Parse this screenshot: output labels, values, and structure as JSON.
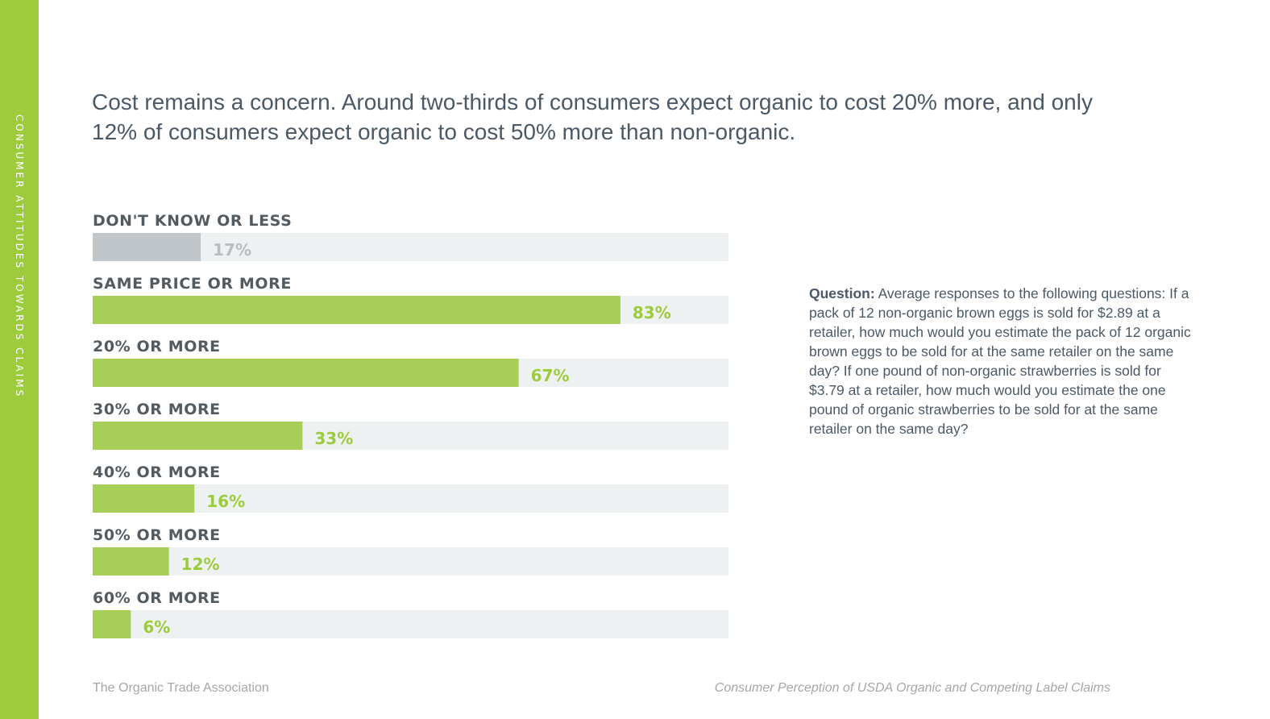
{
  "side_label": "CONSUMER ATTITUDES TOWARDS CLAIMS",
  "headline": "Cost remains a concern. Around two-thirds of consumers expect organic to cost 20% more, and only 12% of consumers expect organic to cost 50% more than non-organic.",
  "note": {
    "label": "Question:",
    "text": "Average responses to the following questions: If a pack of 12 non-organic brown eggs is sold for $2.89 at a retailer, how much would you estimate the pack of 12 organic brown eggs to be sold for at the same retailer on the same day? If one pound of non-organic strawberries is sold for $3.79 at a retailer, how much would you estimate the one pound of organic strawberries to be sold for at the same retailer on the same day?"
  },
  "footer": {
    "left": "The Organic Trade Association",
    "right": "Consumer Perception of USDA Organic and Competing Label Claims"
  },
  "colors": {
    "accent": "#9ccb3b",
    "bar_green": "#a7cf58",
    "bar_gray": "#c0c6ca",
    "track": "#edf1f1",
    "value_green": "#9ccb3b",
    "value_gray": "#b7bcc0"
  },
  "chart_data": {
    "type": "bar",
    "orientation": "horizontal",
    "xlim": [
      0,
      100
    ],
    "categories": [
      "DON'T KNOW OR LESS",
      "SAME PRICE OR MORE",
      "20% OR MORE",
      "30% OR MORE",
      "40% OR MORE",
      "50% OR MORE",
      "60% OR MORE"
    ],
    "values": [
      17,
      83,
      67,
      33,
      16,
      12,
      6
    ],
    "value_labels": [
      "17%",
      "83%",
      "67%",
      "33%",
      "16%",
      "12%",
      "6%"
    ],
    "highlight": [
      false,
      true,
      true,
      true,
      true,
      true,
      true
    ]
  }
}
